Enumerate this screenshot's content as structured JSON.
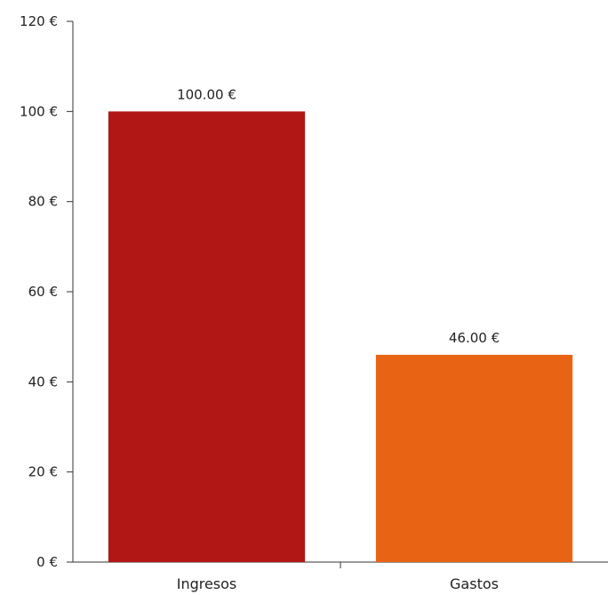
{
  "chart_data": {
    "type": "bar",
    "title": "",
    "xlabel": "",
    "ylabel": "",
    "categories": [
      "Ingresos",
      "Gastos"
    ],
    "values": [
      100,
      46
    ],
    "value_labels": [
      "100.00 €",
      "46.00 €"
    ],
    "colors": [
      "#b11714",
      "#e86414"
    ],
    "ylim": [
      0,
      120
    ],
    "yticks": [
      0,
      20,
      40,
      60,
      80,
      100,
      120
    ],
    "ytick_labels": [
      "0 €",
      "20 €",
      "40 €",
      "60 €",
      "80 €",
      "100 €",
      "120 €"
    ],
    "grid": false,
    "legend": "none"
  }
}
